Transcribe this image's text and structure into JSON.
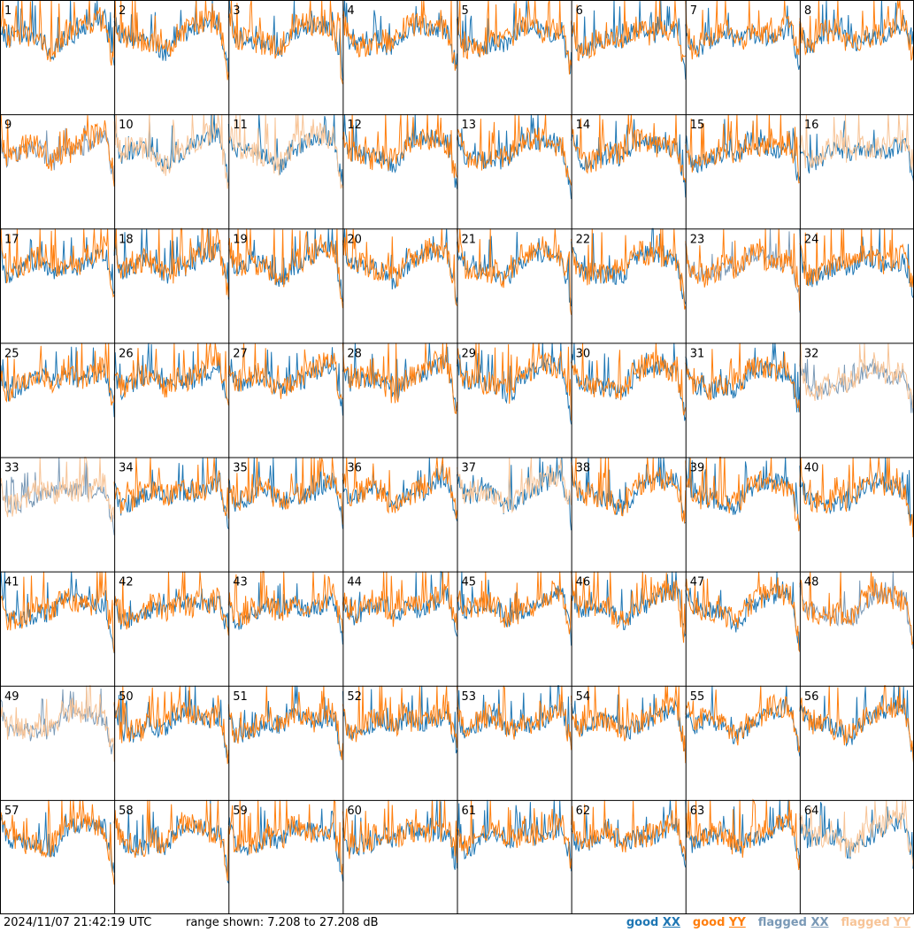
{
  "colors": {
    "good_xx": "#1f77b4",
    "good_yy": "#ff7f0e",
    "flagged_xx": "#7a99b6",
    "flagged_yy": "#f7c497",
    "grid": "#000000",
    "background": "#ffffff"
  },
  "footer": {
    "timestamp": "2024/11/07 21:42:19 UTC",
    "range_text": "range shown: 7.208 to 27.208 dB"
  },
  "legend": [
    {
      "key": "good_xx",
      "word": "good",
      "pol": "XX",
      "color": "#1f77b4"
    },
    {
      "key": "good_yy",
      "word": "good",
      "pol": "YY",
      "color": "#ff7f0e"
    },
    {
      "key": "flagged_xx",
      "word": "flagged",
      "pol": "XX",
      "color": "#7a99b6"
    },
    {
      "key": "flagged_yy",
      "word": "flagged",
      "pol": "YY",
      "color": "#f7c497"
    }
  ],
  "chart_data": {
    "type": "line",
    "layout": "8x8 small multiples",
    "range_db": [
      7.208,
      27.208
    ],
    "tiles": [
      {
        "id": "1",
        "xx": "good",
        "yy": "good"
      },
      {
        "id": "2",
        "xx": "good",
        "yy": "good"
      },
      {
        "id": "3",
        "xx": "good",
        "yy": "good"
      },
      {
        "id": "4",
        "xx": "good",
        "yy": "good"
      },
      {
        "id": "5",
        "xx": "good",
        "yy": "good"
      },
      {
        "id": "6",
        "xx": "good",
        "yy": "good"
      },
      {
        "id": "7",
        "xx": "good",
        "yy": "good"
      },
      {
        "id": "8",
        "xx": "good",
        "yy": "good"
      },
      {
        "id": "9",
        "xx": "flagged",
        "yy": "good"
      },
      {
        "id": "10",
        "xx": "good",
        "yy": "flagged"
      },
      {
        "id": "11",
        "xx": "good",
        "yy": "flagged"
      },
      {
        "id": "12",
        "xx": "good",
        "yy": "good"
      },
      {
        "id": "13",
        "xx": "good",
        "yy": "good"
      },
      {
        "id": "14",
        "xx": "good",
        "yy": "good"
      },
      {
        "id": "15",
        "xx": "good",
        "yy": "good"
      },
      {
        "id": "16",
        "xx": "good",
        "yy": "flagged"
      },
      {
        "id": "17",
        "xx": "good",
        "yy": "good"
      },
      {
        "id": "18",
        "xx": "good",
        "yy": "good"
      },
      {
        "id": "19",
        "xx": "good",
        "yy": "good"
      },
      {
        "id": "20",
        "xx": "good",
        "yy": "good"
      },
      {
        "id": "21",
        "xx": "good",
        "yy": "good"
      },
      {
        "id": "22",
        "xx": "good",
        "yy": "good"
      },
      {
        "id": "23",
        "xx": "flagged",
        "yy": "good"
      },
      {
        "id": "24",
        "xx": "good",
        "yy": "good"
      },
      {
        "id": "25",
        "xx": "good",
        "yy": "good"
      },
      {
        "id": "26",
        "xx": "good",
        "yy": "good"
      },
      {
        "id": "27",
        "xx": "good",
        "yy": "good"
      },
      {
        "id": "28",
        "xx": "good",
        "yy": "good"
      },
      {
        "id": "29",
        "xx": "good",
        "yy": "good"
      },
      {
        "id": "30",
        "xx": "good",
        "yy": "good"
      },
      {
        "id": "31",
        "xx": "good",
        "yy": "good"
      },
      {
        "id": "32",
        "xx": "flagged",
        "yy": "flagged"
      },
      {
        "id": "33",
        "xx": "flagged",
        "yy": "flagged"
      },
      {
        "id": "34",
        "xx": "good",
        "yy": "good"
      },
      {
        "id": "35",
        "xx": "good",
        "yy": "good"
      },
      {
        "id": "36",
        "xx": "good",
        "yy": "good"
      },
      {
        "id": "37",
        "xx": "good",
        "yy": "flagged"
      },
      {
        "id": "38",
        "xx": "good",
        "yy": "good"
      },
      {
        "id": "39",
        "xx": "good",
        "yy": "good"
      },
      {
        "id": "40",
        "xx": "good",
        "yy": "good"
      },
      {
        "id": "41",
        "xx": "good",
        "yy": "good"
      },
      {
        "id": "42",
        "xx": "good",
        "yy": "good"
      },
      {
        "id": "43",
        "xx": "good",
        "yy": "good"
      },
      {
        "id": "44",
        "xx": "good",
        "yy": "good"
      },
      {
        "id": "45",
        "xx": "good",
        "yy": "good"
      },
      {
        "id": "46",
        "xx": "good",
        "yy": "good"
      },
      {
        "id": "47",
        "xx": "good",
        "yy": "good"
      },
      {
        "id": "48",
        "xx": "flagged",
        "yy": "good"
      },
      {
        "id": "49",
        "xx": "flagged",
        "yy": "flagged"
      },
      {
        "id": "50",
        "xx": "good",
        "yy": "good"
      },
      {
        "id": "51",
        "xx": "good",
        "yy": "good"
      },
      {
        "id": "52",
        "xx": "good",
        "yy": "good"
      },
      {
        "id": "53",
        "xx": "good",
        "yy": "good"
      },
      {
        "id": "54",
        "xx": "good",
        "yy": "good"
      },
      {
        "id": "55",
        "xx": "good",
        "yy": "good"
      },
      {
        "id": "56",
        "xx": "good",
        "yy": "good"
      },
      {
        "id": "57",
        "xx": "good",
        "yy": "good"
      },
      {
        "id": "58",
        "xx": "good",
        "yy": "good"
      },
      {
        "id": "59",
        "xx": "good",
        "yy": "good"
      },
      {
        "id": "60",
        "xx": "good",
        "yy": "good"
      },
      {
        "id": "61",
        "xx": "good",
        "yy": "good"
      },
      {
        "id": "62",
        "xx": "good",
        "yy": "good"
      },
      {
        "id": "63",
        "xx": "good",
        "yy": "good"
      },
      {
        "id": "64",
        "xx": "good",
        "yy": "flagged"
      }
    ]
  }
}
